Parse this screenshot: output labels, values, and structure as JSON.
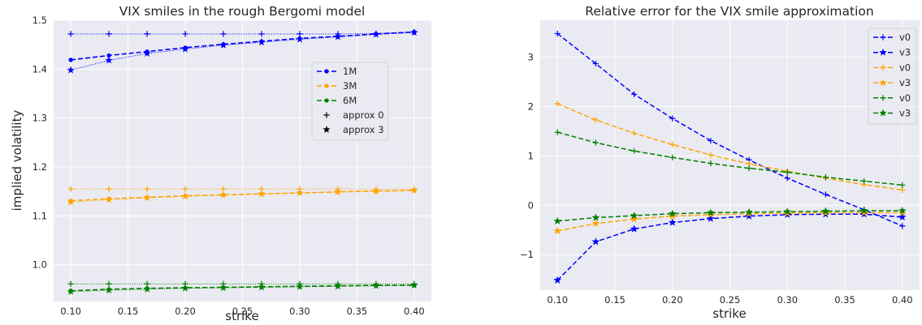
{
  "chart_data": [
    {
      "type": "line",
      "title": "VIX smiles in the rough Bergomi model",
      "xlabel": "strike",
      "ylabel": "implied volatility",
      "x": [
        0.1,
        0.1333,
        0.1667,
        0.2,
        0.2333,
        0.2667,
        0.3,
        0.3333,
        0.3667,
        0.4
      ],
      "xlim": [
        0.085,
        0.415
      ],
      "ylim": [
        0.925,
        1.5
      ],
      "xticks": [
        "0.10",
        "0.15",
        "0.20",
        "0.25",
        "0.30",
        "0.35",
        "0.40"
      ],
      "yticks": [
        "1.0",
        "1.1",
        "1.2",
        "1.3",
        "1.4",
        "1.5"
      ],
      "grid": true,
      "legend_position": "center-right",
      "legend": [
        {
          "label": "1M",
          "color": "#0000ff",
          "style": "dashed-dot"
        },
        {
          "label": "3M",
          "color": "#ffa500",
          "style": "dashed-dot"
        },
        {
          "label": "6M",
          "color": "#008000",
          "style": "dashed-dot"
        },
        {
          "label": "approx 0",
          "color": "#000000",
          "style": "plus"
        },
        {
          "label": "approx 3",
          "color": "#000000",
          "style": "star"
        }
      ],
      "series": [
        {
          "color": "#0000ff",
          "style": "dashed-dot",
          "values": [
            1.419,
            1.428,
            1.436,
            1.444,
            1.451,
            1.457,
            1.463,
            1.467,
            1.472,
            1.476
          ]
        },
        {
          "color": "#0000ff",
          "style": "dotted-plus",
          "values": [
            1.472,
            1.472,
            1.472,
            1.472,
            1.472,
            1.472,
            1.472,
            1.472,
            1.473,
            1.476
          ]
        },
        {
          "color": "#0000ff",
          "style": "dotted-star",
          "values": [
            1.398,
            1.418,
            1.432,
            1.441,
            1.449,
            1.455,
            1.461,
            1.466,
            1.471,
            1.475
          ]
        },
        {
          "color": "#ffa500",
          "style": "dashed-dot",
          "values": [
            1.131,
            1.135,
            1.138,
            1.141,
            1.143,
            1.145,
            1.147,
            1.149,
            1.151,
            1.152
          ]
        },
        {
          "color": "#ffa500",
          "style": "dotted-plus",
          "values": [
            1.155,
            1.155,
            1.155,
            1.155,
            1.155,
            1.155,
            1.155,
            1.155,
            1.155,
            1.155
          ]
        },
        {
          "color": "#ffa500",
          "style": "dotted-star",
          "values": [
            1.128,
            1.133,
            1.137,
            1.14,
            1.143,
            1.145,
            1.147,
            1.149,
            1.15,
            1.152
          ]
        },
        {
          "color": "#008000",
          "style": "dashed-dot",
          "values": [
            0.947,
            0.95,
            0.952,
            0.953,
            0.954,
            0.955,
            0.956,
            0.957,
            0.958,
            0.958
          ]
        },
        {
          "color": "#008000",
          "style": "dotted-plus",
          "values": [
            0.961,
            0.961,
            0.961,
            0.961,
            0.961,
            0.961,
            0.961,
            0.961,
            0.961,
            0.961
          ]
        },
        {
          "color": "#008000",
          "style": "dotted-star",
          "values": [
            0.945,
            0.948,
            0.95,
            0.952,
            0.953,
            0.954,
            0.955,
            0.956,
            0.957,
            0.958
          ]
        }
      ]
    },
    {
      "type": "line",
      "title": "Relative error for the VIX smile approximation",
      "xlabel": "strike",
      "ylabel": "",
      "x": [
        0.1,
        0.1333,
        0.1667,
        0.2,
        0.2333,
        0.2667,
        0.3,
        0.3333,
        0.3667,
        0.4
      ],
      "xlim": [
        0.085,
        0.415
      ],
      "ylim": [
        -1.72,
        3.75
      ],
      "xticks": [
        "0.10",
        "0.15",
        "0.20",
        "0.25",
        "0.30",
        "0.35",
        "0.40"
      ],
      "yticks": [
        "−1",
        "0",
        "1",
        "2",
        "3"
      ],
      "grid": true,
      "legend_position": "top-right",
      "legend": [
        {
          "label": "v0",
          "color": "#0000ff",
          "marker": "plus"
        },
        {
          "label": "v3",
          "color": "#0000ff",
          "marker": "star"
        },
        {
          "label": "v0",
          "color": "#ffa500",
          "marker": "plus"
        },
        {
          "label": "v3",
          "color": "#ffa500",
          "marker": "star"
        },
        {
          "label": "v0",
          "color": "#008000",
          "marker": "plus"
        },
        {
          "label": "v3",
          "color": "#008000",
          "marker": "star"
        }
      ],
      "series": [
        {
          "name": "v0",
          "color": "#0000ff",
          "marker": "plus",
          "values": [
            3.48,
            2.87,
            2.25,
            1.76,
            1.31,
            0.92,
            0.55,
            0.22,
            -0.09,
            -0.42
          ]
        },
        {
          "name": "v3",
          "color": "#0000ff",
          "marker": "star",
          "values": [
            -1.52,
            -0.74,
            -0.48,
            -0.35,
            -0.27,
            -0.22,
            -0.19,
            -0.18,
            -0.18,
            -0.24
          ]
        },
        {
          "name": "v0",
          "color": "#ffa500",
          "marker": "plus",
          "values": [
            2.06,
            1.73,
            1.46,
            1.23,
            1.02,
            0.84,
            0.69,
            0.55,
            0.42,
            0.31
          ]
        },
        {
          "name": "v3",
          "color": "#ffa500",
          "marker": "star",
          "values": [
            -0.52,
            -0.37,
            -0.28,
            -0.22,
            -0.19,
            -0.17,
            -0.16,
            -0.15,
            -0.15,
            -0.15
          ]
        },
        {
          "name": "v0",
          "color": "#008000",
          "marker": "plus",
          "values": [
            1.48,
            1.27,
            1.1,
            0.97,
            0.85,
            0.75,
            0.67,
            0.57,
            0.49,
            0.41
          ]
        },
        {
          "name": "v3",
          "color": "#008000",
          "marker": "star",
          "values": [
            -0.32,
            -0.25,
            -0.21,
            -0.17,
            -0.15,
            -0.14,
            -0.13,
            -0.12,
            -0.11,
            -0.11
          ]
        }
      ]
    }
  ]
}
